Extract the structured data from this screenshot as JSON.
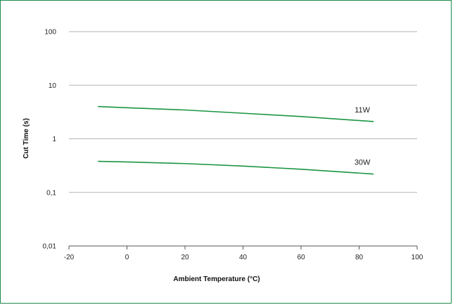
{
  "chart_data": {
    "type": "line",
    "title": "",
    "xlabel": "Ambient Temperature (°C)",
    "ylabel": "Cut Time (s)",
    "xlim": [
      -20,
      100
    ],
    "ylim": [
      0.01,
      100
    ],
    "yscale": "log",
    "x_ticks": [
      "-20",
      "0",
      "20",
      "40",
      "60",
      "80",
      "100"
    ],
    "y_ticks": [
      "0,01",
      "0,1",
      "1",
      "10",
      "100"
    ],
    "grid": "horizontal",
    "line_color": "#1a9641",
    "series": [
      {
        "name": "11W",
        "x": [
          -10,
          0,
          20,
          40,
          60,
          85
        ],
        "y": [
          4.0,
          3.8,
          3.45,
          3.0,
          2.6,
          2.1
        ]
      },
      {
        "name": "30W",
        "x": [
          -10,
          0,
          20,
          40,
          60,
          85
        ],
        "y": [
          0.38,
          0.37,
          0.345,
          0.31,
          0.27,
          0.22
        ]
      }
    ]
  }
}
